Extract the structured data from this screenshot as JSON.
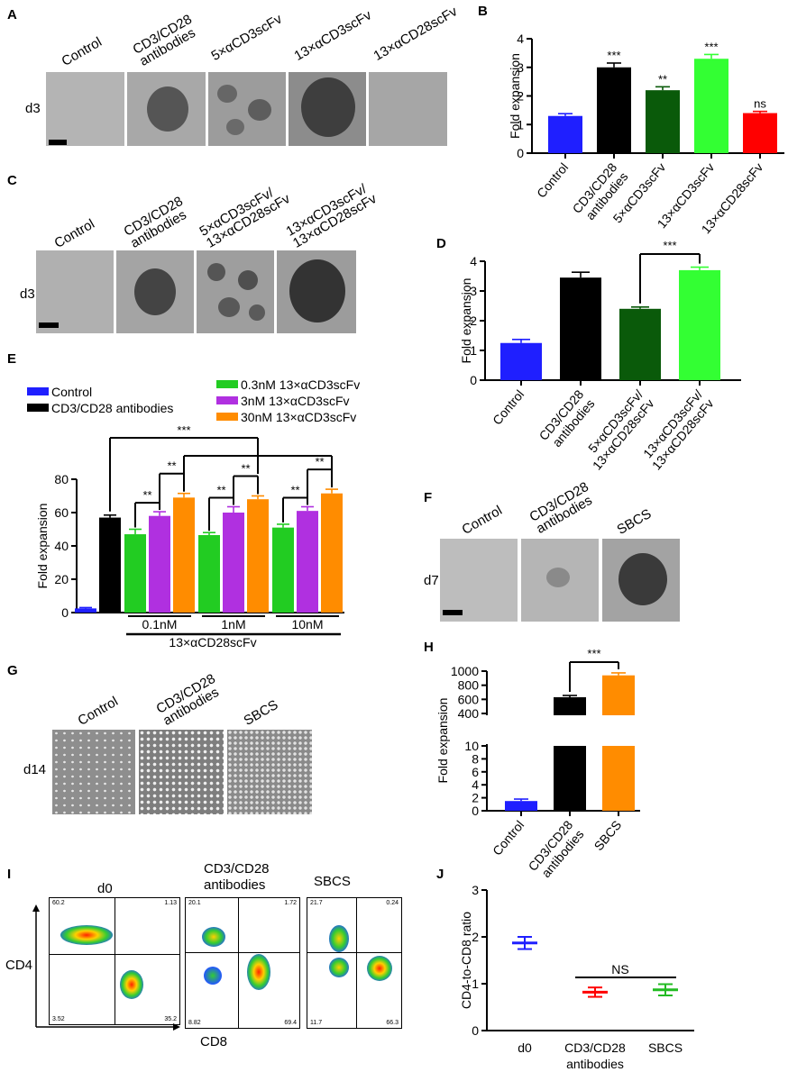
{
  "panels": {
    "A": {
      "letter": "A",
      "day": "d3",
      "conditions": [
        "Control",
        "CD3/CD28\nantibodies",
        "5×αCD3scFv",
        "13×αCD3scFv",
        "13×αCD28scFv"
      ]
    },
    "C": {
      "letter": "C",
      "day": "d3",
      "conditions": [
        "Control",
        "CD3/CD28\nantibodies",
        "5×αCD3scFv/\n13×αCD28scFv",
        "13×αCD3scFv/\n13×αCD28scFv"
      ]
    },
    "F": {
      "letter": "F",
      "day": "d7",
      "conditions": [
        "Control",
        "CD3/CD28\nantibodies",
        "SBCS"
      ]
    },
    "G": {
      "letter": "G",
      "day": "d14",
      "conditions": [
        "Control",
        "CD3/CD28\nantibodies",
        "SBCS"
      ]
    },
    "I": {
      "letter": "I",
      "xaxis": "CD8",
      "yaxis": "CD4",
      "plots": [
        {
          "title": "d0",
          "q": [
            "60.2",
            "1.13",
            "3.52",
            "35.2"
          ]
        },
        {
          "title": "CD3/CD28\nantibodies",
          "q": [
            "20.1",
            "1.72",
            "8.82",
            "69.4"
          ]
        },
        {
          "title": "SBCS",
          "q": [
            "21.7",
            "0.24",
            "11.7",
            "66.3"
          ]
        }
      ]
    }
  },
  "chart_data": [
    {
      "id": "B",
      "letter": "B",
      "type": "bar",
      "categories": [
        "Control",
        "CD3/CD28\nantibodies",
        "5×αCD3scFv",
        "13×αCD3scFv",
        "13×αCD28scFv"
      ],
      "values": [
        1.3,
        3.0,
        2.2,
        3.3,
        1.4
      ],
      "errors": [
        0.08,
        0.15,
        0.12,
        0.15,
        0.06
      ],
      "colors": [
        "#1f1fff",
        "#000000",
        "#0a5a0a",
        "#33ff33",
        "#ff0000"
      ],
      "significance": [
        "",
        "***",
        "**",
        "***",
        "ns"
      ],
      "ylabel": "Fold expansion",
      "ylim": [
        0,
        4
      ],
      "yticks": [
        "0",
        "1",
        "2",
        "3",
        "4"
      ]
    },
    {
      "id": "D",
      "letter": "D",
      "type": "bar",
      "categories": [
        "Control",
        "CD3/CD28\nantibodies",
        "5×αCD3scFv/\n13×αCD28scFv",
        "13×αCD3scFv/\n13×αCD28scFv"
      ],
      "values": [
        1.25,
        3.45,
        2.4,
        3.7
      ],
      "errors": [
        0.12,
        0.18,
        0.06,
        0.1
      ],
      "colors": [
        "#1f1fff",
        "#000000",
        "#0a5a0a",
        "#33ff33"
      ],
      "bracket": {
        "from": 2,
        "to": 3,
        "label": "***"
      },
      "ylabel": "Fold expansion",
      "ylim": [
        0,
        4
      ],
      "yticks": [
        "0",
        "1",
        "2",
        "3",
        "4"
      ]
    },
    {
      "id": "E",
      "letter": "E",
      "type": "bar",
      "legend": [
        {
          "label": "Control",
          "color": "#1f1fff"
        },
        {
          "label": "CD3/CD28 antibodies",
          "color": "#000000"
        },
        {
          "label": "0.3nM 13×αCD3scFv",
          "color": "#22cc22"
        },
        {
          "label": "3nM 13×αCD3scFv",
          "color": "#b030e0"
        },
        {
          "label": "30nM 13×αCD3scFv",
          "color": "#ff8c00"
        }
      ],
      "single_bars": [
        {
          "value": 2.5,
          "error": 0.5,
          "color": "#1f1fff"
        },
        {
          "value": 57,
          "error": 1.5,
          "color": "#000000"
        }
      ],
      "groups": [
        {
          "label": "0.1nM",
          "values": [
            47,
            58,
            69
          ],
          "errors": [
            3,
            2.5,
            2.5
          ]
        },
        {
          "label": "1nM",
          "values": [
            46.5,
            60,
            68
          ],
          "errors": [
            1.5,
            3.5,
            2
          ]
        },
        {
          "label": "10nM",
          "values": [
            51,
            61,
            71.5
          ],
          "errors": [
            2,
            2.5,
            2.5
          ]
        }
      ],
      "group_colors": [
        "#22cc22",
        "#b030e0",
        "#ff8c00"
      ],
      "within_sig": "**",
      "across_sig": "***",
      "group_axis_label": "13×αCD28scFv",
      "ylabel": "Fold expansion",
      "ylim": [
        0,
        80
      ],
      "yticks": [
        "0",
        "20",
        "40",
        "60",
        "80"
      ]
    },
    {
      "id": "H",
      "letter": "H",
      "type": "bar",
      "categories": [
        "Control",
        "CD3/CD28\nantibodies",
        "SBCS"
      ],
      "values": [
        1.5,
        630,
        940
      ],
      "errors": [
        0.3,
        25,
        35
      ],
      "colors": [
        "#1f1fff",
        "#000000",
        "#ff8c00"
      ],
      "bracket": {
        "from": 1,
        "to": 2,
        "label": "***"
      },
      "ylabel": "Fold expansion",
      "upper_ticks": [
        "1000",
        "800",
        "600",
        "400"
      ],
      "lower_ticks": [
        "10",
        "8",
        "6",
        "4",
        "2",
        "0"
      ]
    },
    {
      "id": "J",
      "letter": "J",
      "type": "scatter",
      "categories": [
        "d0",
        "CD3/CD28\nantibodies",
        "SBCS"
      ],
      "values": [
        1.87,
        0.82,
        0.87
      ],
      "errors": [
        0.13,
        0.1,
        0.12
      ],
      "colors": [
        "#1f1fff",
        "#ff0000",
        "#22bb22"
      ],
      "significance": "NS",
      "ylabel": "CD4-to-CD8 ratio",
      "ylim": [
        0,
        3
      ],
      "yticks": [
        "0",
        "1",
        "2",
        "3"
      ]
    }
  ]
}
